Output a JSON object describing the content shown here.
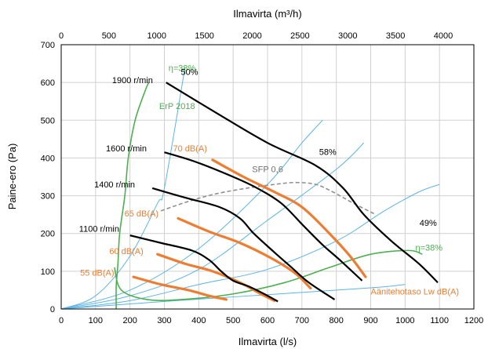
{
  "chart_data": {
    "type": "line",
    "title": "",
    "xlabel": "Ilmavirta (l/s)",
    "x2label": "Ilmavirta (m³/h)",
    "ylabel": "Paine-ero (Pa)",
    "xlim": [
      0,
      1200
    ],
    "ylim": [
      0,
      700
    ],
    "x2lim": [
      0,
      4320
    ],
    "xticks": [
      0,
      100,
      200,
      300,
      400,
      500,
      600,
      700,
      800,
      900,
      1000,
      1100,
      1200
    ],
    "yticks": [
      0,
      100,
      200,
      300,
      400,
      500,
      600,
      700
    ],
    "x2ticks": [
      0,
      500,
      1000,
      1500,
      2000,
      2500,
      3000,
      3500,
      4000
    ],
    "grid": true,
    "colors": {
      "fan": "#000000",
      "noise": "#ed7d31",
      "system": "#5bb4e5",
      "efficiency": "#4caf50",
      "sfp": "#909090"
    },
    "fan_curves": [
      {
        "name": "1900 r/min",
        "points": [
          [
            305,
            600
          ],
          [
            450,
            520
          ],
          [
            600,
            440
          ],
          [
            740,
            380
          ],
          [
            820,
            320
          ],
          [
            880,
            250
          ],
          [
            960,
            180
          ],
          [
            1040,
            120
          ],
          [
            1095,
            70
          ]
        ]
      },
      {
        "name": "1600 r/min",
        "points": [
          [
            300,
            415
          ],
          [
            390,
            390
          ],
          [
            500,
            350
          ],
          [
            570,
            320
          ],
          [
            640,
            280
          ],
          [
            705,
            220
          ],
          [
            760,
            170
          ],
          [
            810,
            130
          ],
          [
            875,
            75
          ]
        ]
      },
      {
        "name": "1400 r/min",
        "points": [
          [
            265,
            320
          ],
          [
            360,
            295
          ],
          [
            460,
            270
          ],
          [
            520,
            240
          ],
          [
            560,
            200
          ],
          [
            620,
            150
          ],
          [
            670,
            110
          ],
          [
            720,
            70
          ],
          [
            795,
            25
          ]
        ]
      },
      {
        "name": "1100 r/min",
        "points": [
          [
            200,
            195
          ],
          [
            290,
            175
          ],
          [
            380,
            155
          ],
          [
            430,
            130
          ],
          [
            465,
            100
          ],
          [
            500,
            75
          ],
          [
            545,
            60
          ],
          [
            590,
            40
          ],
          [
            630,
            20
          ]
        ]
      }
    ],
    "noise_curves": [
      {
        "name": "70 dB(A)",
        "points": [
          [
            440,
            395
          ],
          [
            530,
            350
          ],
          [
            620,
            310
          ],
          [
            700,
            270
          ],
          [
            780,
            200
          ],
          [
            840,
            140
          ],
          [
            885,
            85
          ]
        ]
      },
      {
        "name": "65 dB(A)",
        "points": [
          [
            340,
            240
          ],
          [
            430,
            205
          ],
          [
            520,
            175
          ],
          [
            610,
            135
          ],
          [
            680,
            95
          ],
          [
            725,
            55
          ]
        ]
      },
      {
        "name": "60 dB(A)",
        "points": [
          [
            280,
            145
          ],
          [
            360,
            120
          ],
          [
            440,
            100
          ],
          [
            520,
            70
          ],
          [
            580,
            40
          ],
          [
            620,
            22
          ]
        ]
      },
      {
        "name": "55 dB(A)",
        "points": [
          [
            210,
            85
          ],
          [
            290,
            65
          ],
          [
            370,
            50
          ],
          [
            430,
            35
          ],
          [
            480,
            25
          ]
        ]
      }
    ],
    "system_curves": [
      {
        "name": "",
        "points": [
          [
            0,
            0
          ],
          [
            100,
            35
          ],
          [
            200,
            140
          ],
          [
            280,
            280
          ],
          [
            300,
            320
          ],
          [
            360,
            640
          ]
        ]
      },
      {
        "name": "",
        "points": [
          [
            0,
            0
          ],
          [
            200,
            50
          ],
          [
            400,
            160
          ],
          [
            600,
            330
          ],
          [
            700,
            440
          ],
          [
            760,
            500
          ]
        ]
      },
      {
        "name": "",
        "points": [
          [
            0,
            0
          ],
          [
            200,
            35
          ],
          [
            400,
            105
          ],
          [
            600,
            235
          ],
          [
            800,
            370
          ],
          [
            880,
            440
          ]
        ]
      },
      {
        "name": "",
        "points": [
          [
            0,
            0
          ],
          [
            200,
            22
          ],
          [
            400,
            65
          ],
          [
            600,
            105
          ],
          [
            800,
            180
          ],
          [
            940,
            260
          ],
          [
            1040,
            310
          ],
          [
            1100,
            330
          ]
        ]
      },
      {
        "name": "",
        "points": [
          [
            0,
            0
          ],
          [
            300,
            20
          ],
          [
            600,
            38
          ],
          [
            900,
            56
          ],
          [
            1000,
            65
          ]
        ]
      }
    ],
    "efficiency_curves": [
      {
        "name": "η=38%",
        "points": [
          [
            160,
            0
          ],
          [
            160,
            60
          ],
          [
            165,
            120
          ],
          [
            170,
            200
          ],
          [
            185,
            300
          ],
          [
            195,
            400
          ],
          [
            215,
            500
          ],
          [
            245,
            580
          ],
          [
            255,
            600
          ]
        ]
      },
      {
        "name": "η=38%",
        "points": [
          [
            155,
            110
          ],
          [
            175,
            50
          ],
          [
            250,
            25
          ],
          [
            350,
            25
          ],
          [
            500,
            40
          ],
          [
            650,
            70
          ],
          [
            780,
            110
          ],
          [
            900,
            145
          ],
          [
            1010,
            155
          ],
          [
            1050,
            145
          ]
        ]
      }
    ],
    "sfp_curve": {
      "name": "SFP 0,6",
      "points": [
        [
          290,
          260
        ],
        [
          370,
          285
        ],
        [
          450,
          305
        ],
        [
          540,
          320
        ],
        [
          620,
          330
        ],
        [
          680,
          335
        ],
        [
          740,
          330
        ],
        [
          790,
          310
        ],
        [
          850,
          280
        ],
        [
          915,
          250
        ]
      ]
    },
    "annotations": [
      {
        "text": "η=38%",
        "x": 312,
        "y": 630,
        "color": "green"
      },
      {
        "text": "50%",
        "x": 348,
        "y": 620,
        "color": "black"
      },
      {
        "text": "1900 r/min",
        "x": 148,
        "y": 598,
        "color": "black"
      },
      {
        "text": "ErP 2018",
        "x": 285,
        "y": 530,
        "color": "green"
      },
      {
        "text": "1600 r/min",
        "x": 130,
        "y": 418,
        "color": "black"
      },
      {
        "text": "70 dB(A)",
        "x": 325,
        "y": 418,
        "color": "orange"
      },
      {
        "text": "58%",
        "x": 750,
        "y": 408,
        "color": "black"
      },
      {
        "text": "SFP 0,6",
        "x": 555,
        "y": 362,
        "color": "gray"
      },
      {
        "text": "1400 r/min",
        "x": 96,
        "y": 322,
        "color": "black"
      },
      {
        "text": "65 dB(A)",
        "x": 184,
        "y": 245,
        "color": "orange"
      },
      {
        "text": "49%",
        "x": 1042,
        "y": 220,
        "color": "black"
      },
      {
        "text": "1100 r/min",
        "x": 52,
        "y": 205,
        "color": "black"
      },
      {
        "text": "η=38%",
        "x": 1030,
        "y": 155,
        "color": "green"
      },
      {
        "text": "60 dB(A)",
        "x": 140,
        "y": 145,
        "color": "orange"
      },
      {
        "text": "55 dB(A)",
        "x": 55,
        "y": 88,
        "color": "orange"
      },
      {
        "text": "Äänitehotaso Lw dB(A)",
        "x": 900,
        "y": 38,
        "color": "orange"
      }
    ]
  }
}
